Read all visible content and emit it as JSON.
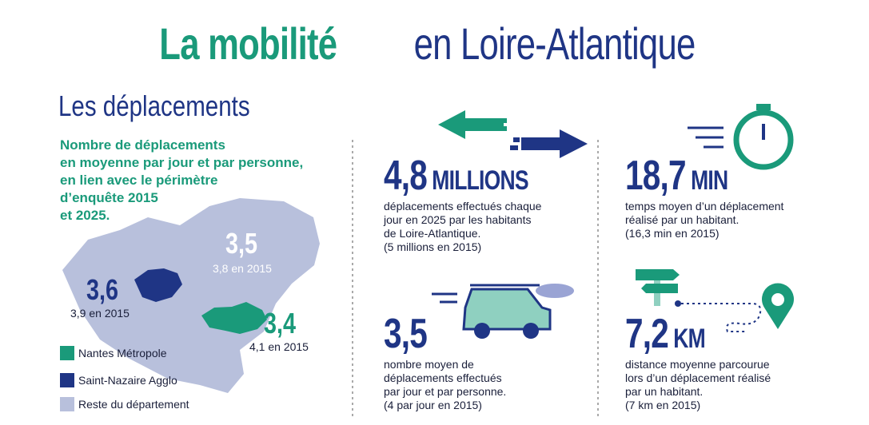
{
  "header": {
    "title_highlight": "La mobilité",
    "title_rest": "en Loire-Atlantique"
  },
  "section_title": "Les déplacements",
  "intro": [
    "Nombre de déplacements",
    "en moyenne par jour et par personne,",
    "en lien avec le périmètre",
    "d’enquête 2015",
    "et 2025."
  ],
  "map": {
    "areas": [
      {
        "value": "3,5",
        "previous": "3,8 en 2015"
      },
      {
        "value": "3,6",
        "previous": "3,9 en 2015"
      },
      {
        "value": "3,4",
        "previous": "4,1 en 2015"
      }
    ],
    "legend": [
      "Nantes Métropole",
      "Saint-Nazaire Agglo",
      "Reste du département"
    ]
  },
  "stats": [
    {
      "value": "4,8",
      "unit": "MILLIONS",
      "description": [
        "déplacements effectués chaque",
        "jour en 2025 par les habitants",
        "de Loire-Atlantique."
      ],
      "note": "(5 millions en 2015)"
    },
    {
      "value": "18,7",
      "unit": "MIN",
      "description": [
        "temps moyen d’un déplacement",
        "réalisé par un habitant."
      ],
      "note": "(16,3 min en 2015)"
    },
    {
      "value": "3,5",
      "description": [
        "nombre moyen de",
        "déplacements effectués",
        "par jour et par personne."
      ],
      "note": "(4 par jour en 2015)"
    },
    {
      "value": "7,2",
      "unit": "KM",
      "description": [
        "distance moyenne parcourue",
        "lors d’un déplacement réalisé",
        "par un habitant."
      ],
      "note": "(7 km en 2015)"
    }
  ]
}
